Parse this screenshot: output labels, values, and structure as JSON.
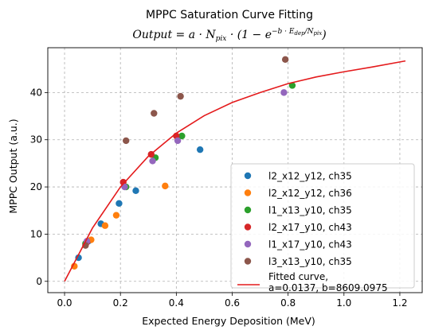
{
  "chart_data": {
    "type": "scatter",
    "title": "MPPC Saturation Curve Fitting",
    "subtitle": "Output = a · N_pix · (1 − e^(−b · E_dep / N_pix))",
    "xlabel": "Expected Energy Deposition (MeV)",
    "ylabel": "MPPC Output (a.u.)",
    "xlim": [
      -0.06,
      1.28
    ],
    "ylim": [
      -2.4,
      49.5
    ],
    "xticks": [
      0.0,
      0.2,
      0.4,
      0.6,
      0.8,
      1.0,
      1.2
    ],
    "xtick_labels": [
      "0.0",
      "0.2",
      "0.4",
      "0.6",
      "0.8",
      "1.0",
      "1.2"
    ],
    "yticks": [
      0,
      10,
      20,
      30,
      40
    ],
    "ytick_labels": [
      "0",
      "10",
      "20",
      "30",
      "40"
    ],
    "grid": true,
    "grid_style": "dashed",
    "legend_position": "lower-right",
    "series": [
      {
        "name": "l2_x12_y12, ch35",
        "color": "#1f77b4",
        "points": [
          [
            0.05,
            5.0
          ],
          [
            0.085,
            8.5
          ],
          [
            0.13,
            12.2
          ],
          [
            0.195,
            16.5
          ],
          [
            0.255,
            19.2
          ],
          [
            0.485,
            27.9
          ]
        ]
      },
      {
        "name": "l2_x12_y12, ch36",
        "color": "#ff7f0e",
        "points": [
          [
            0.035,
            3.2
          ],
          [
            0.095,
            8.8
          ],
          [
            0.145,
            11.8
          ],
          [
            0.185,
            14.0
          ],
          [
            0.36,
            20.2
          ]
        ]
      },
      {
        "name": "l1_x13_y10, ch35",
        "color": "#2ca02c",
        "points": [
          [
            0.075,
            8.0
          ],
          [
            0.22,
            20.0
          ],
          [
            0.325,
            26.2
          ],
          [
            0.42,
            30.8
          ],
          [
            0.815,
            41.5
          ]
        ]
      },
      {
        "name": "l2_x17_y10, ch43",
        "color": "#d62728",
        "points": [
          [
            0.08,
            8.3
          ],
          [
            0.21,
            21.0
          ],
          [
            0.31,
            26.9
          ],
          [
            0.4,
            30.8
          ]
        ]
      },
      {
        "name": "l1_x17_y10, ch43",
        "color": "#9467bd",
        "points": [
          [
            0.08,
            8.5
          ],
          [
            0.215,
            20.0
          ],
          [
            0.315,
            25.5
          ],
          [
            0.405,
            29.8
          ],
          [
            0.785,
            40.0
          ]
        ]
      },
      {
        "name": "l3_x13_y10, ch35",
        "color": "#8c564b",
        "points": [
          [
            0.075,
            7.6
          ],
          [
            0.22,
            29.8
          ],
          [
            0.32,
            35.6
          ],
          [
            0.415,
            39.2
          ],
          [
            0.79,
            47.0
          ]
        ]
      }
    ],
    "fit": {
      "name": "Fitted curve,\na=0.0137, b=8609.0975",
      "label_lines": [
        "Fitted curve,",
        "a=0.0137, b=8609.0975"
      ],
      "color": "#e41a1c",
      "model": "saturation",
      "x_range": [
        0.0,
        1.22
      ],
      "points": [
        [
          0.0,
          0.0
        ],
        [
          0.1,
          11.3
        ],
        [
          0.2,
          20.0
        ],
        [
          0.3,
          26.5
        ],
        [
          0.4,
          31.4
        ],
        [
          0.5,
          35.1
        ],
        [
          0.6,
          37.9
        ],
        [
          0.7,
          40.0
        ],
        [
          0.8,
          41.9
        ],
        [
          0.9,
          43.3
        ],
        [
          1.0,
          44.4
        ],
        [
          1.1,
          45.4
        ],
        [
          1.22,
          46.7
        ]
      ]
    }
  }
}
